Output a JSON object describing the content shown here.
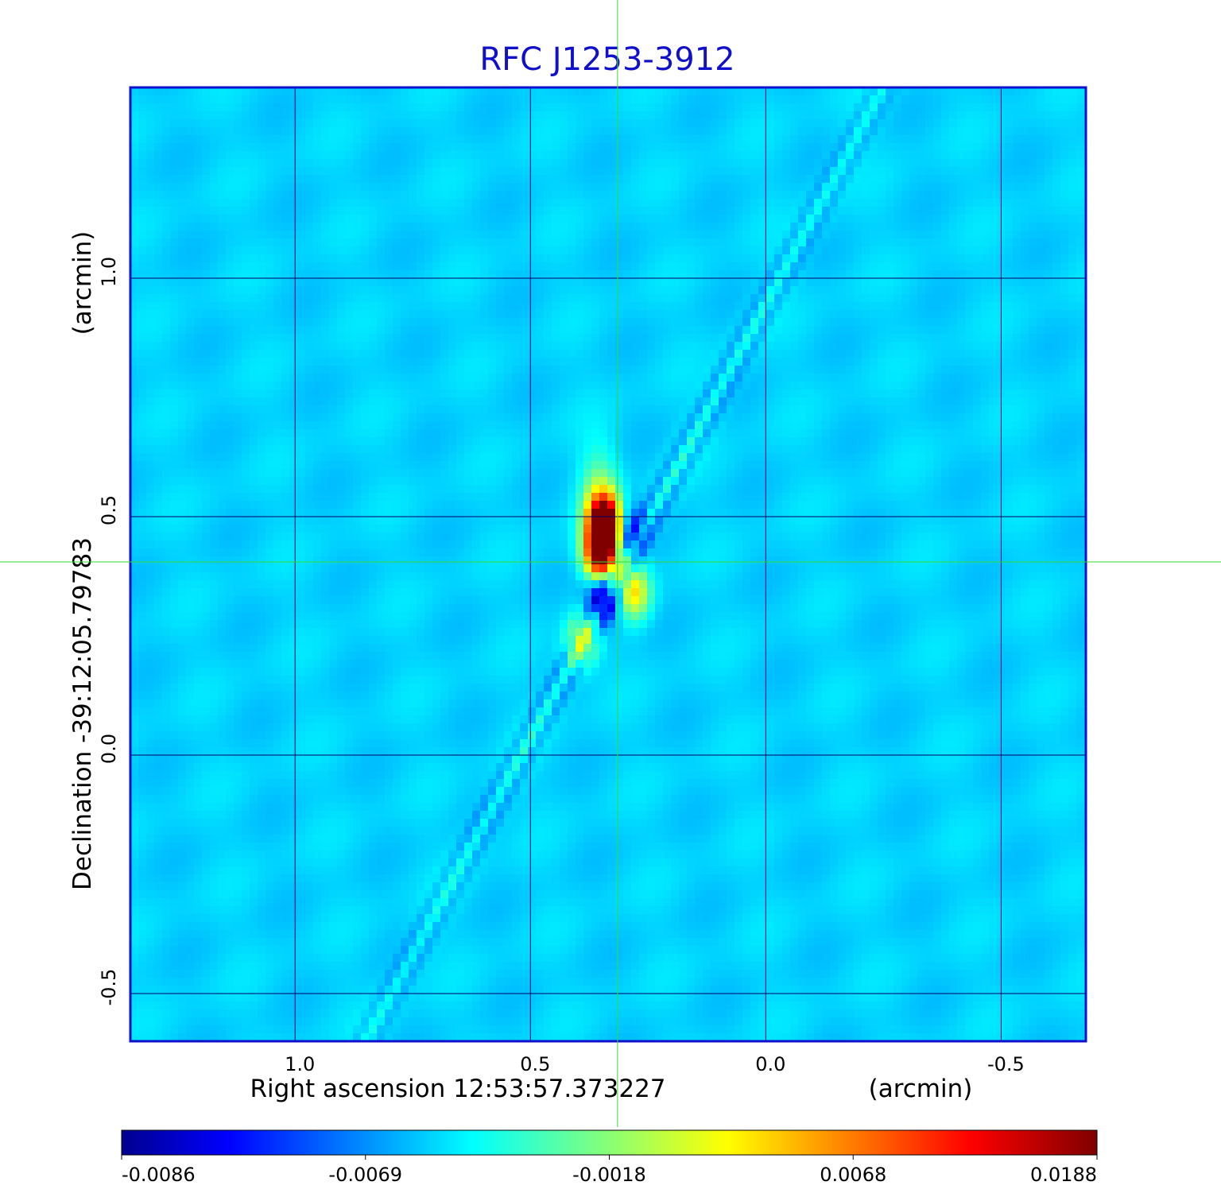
{
  "chart_data": {
    "type": "heatmap",
    "title": "RFC J1253-3912",
    "xlabel": "Right ascension  12:53:57.373227",
    "xunit": "(arcmin)",
    "ylabel": "Declination  -39:12:05.79783",
    "yunit": "(arcmin)",
    "x_range_arcmin": [
      1.35,
      -0.68
    ],
    "y_range_arcmin": [
      -0.6,
      1.4
    ],
    "x_ticks": [
      1.0,
      0.5,
      0.0,
      -0.5
    ],
    "x_tick_labels": [
      "1.0",
      "0.5",
      "0.0",
      "-0.5"
    ],
    "y_ticks": [
      -0.5,
      0.0,
      0.5,
      1.0
    ],
    "y_tick_labels": [
      "-0.5",
      "0.0",
      "0.5",
      "1.0"
    ],
    "grid": true,
    "crosshair_arcmin": {
      "x": 0.315,
      "y": 0.405
    },
    "colorbar": {
      "ticks": [
        -0.0086,
        -0.0069,
        -0.0018,
        0.0068,
        0.0188
      ],
      "tick_labels": [
        "-0.0086",
        "-0.0069",
        "-0.0018",
        "0.0068",
        "0.0188"
      ],
      "colormap": "jet"
    },
    "features": [
      {
        "kind": "peak_positive",
        "x": 0.34,
        "y": 0.49,
        "value": 0.0188
      },
      {
        "kind": "peak_positive",
        "x": 0.35,
        "y": 0.42,
        "value": 0.0188
      },
      {
        "kind": "peak_negative",
        "x": 0.345,
        "y": 0.33,
        "value": -0.0086
      },
      {
        "kind": "positive",
        "x": 0.28,
        "y": 0.34,
        "value": 0.009
      },
      {
        "kind": "positive",
        "x": 0.39,
        "y": 0.24,
        "value": 0.007
      },
      {
        "kind": "negative",
        "x": 0.29,
        "y": 0.47,
        "value": -0.005
      }
    ]
  },
  "colors": {
    "title": "#1010cc",
    "frame": "#1010cc",
    "grid": "#000060",
    "crosshair": "#33dd33",
    "background": "#d6f26a"
  }
}
